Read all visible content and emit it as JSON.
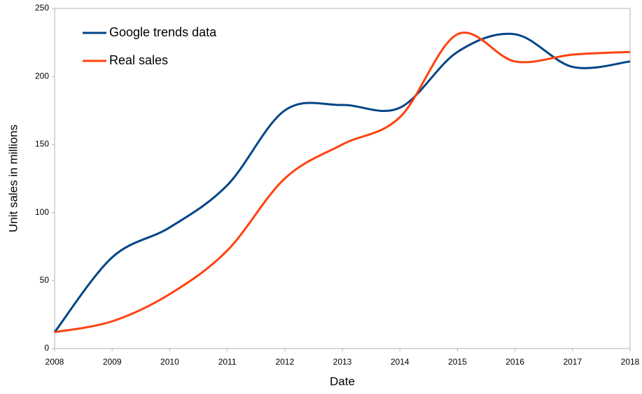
{
  "chart_data": {
    "type": "line",
    "x_label": "Date",
    "y_label": "Unit sales in millions",
    "x": [
      2008,
      2009,
      2010,
      2011,
      2012,
      2013,
      2014,
      2015,
      2016,
      2017,
      2018
    ],
    "series": [
      {
        "name": "Google trends data",
        "color": "#004586",
        "values": [
          12,
          67,
          89,
          120,
          175,
          179,
          177,
          218,
          231,
          207,
          211
        ]
      },
      {
        "name": "Real sales",
        "color": "#ff420e",
        "values": [
          12,
          20,
          40,
          72,
          125,
          150,
          170,
          231,
          211,
          216,
          218
        ]
      }
    ],
    "xlim": [
      2008,
      2018
    ],
    "xticks": [
      2008,
      2009,
      2010,
      2011,
      2012,
      2013,
      2014,
      2015,
      2016,
      2017,
      2018
    ],
    "ylim": [
      0,
      250
    ],
    "yticks": [
      0,
      50,
      100,
      150,
      200,
      250
    ],
    "grid": false,
    "legend": "upper left"
  }
}
